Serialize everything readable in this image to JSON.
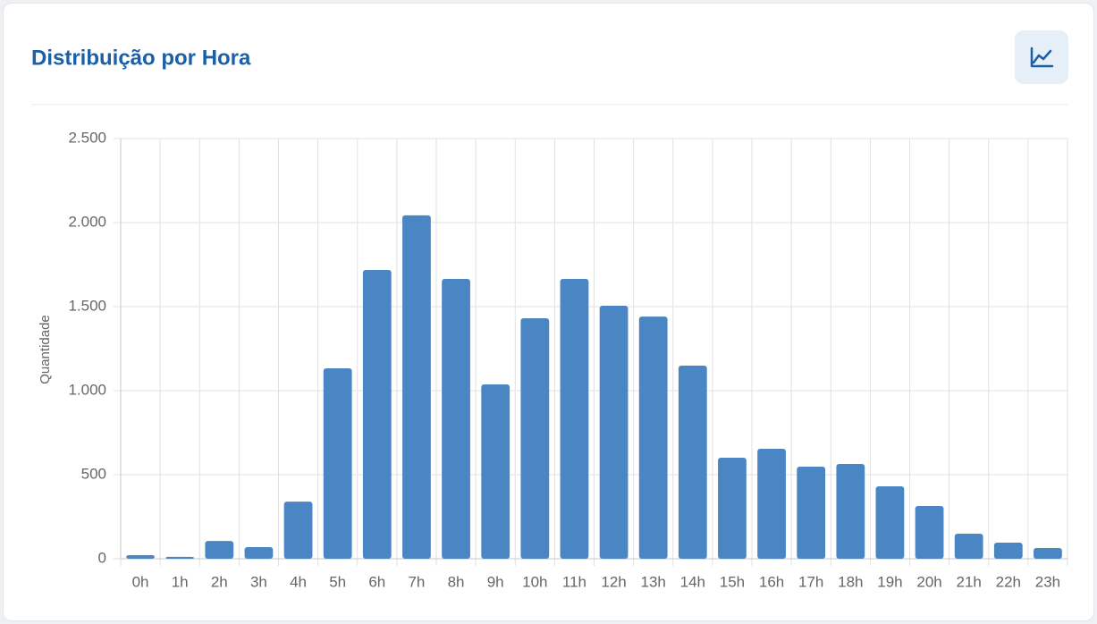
{
  "chart_data": {
    "type": "bar",
    "title": "Distribuição por Hora",
    "y_label": "Quantidade",
    "categories": [
      "0h",
      "1h",
      "2h",
      "3h",
      "4h",
      "5h",
      "6h",
      "7h",
      "8h",
      "9h",
      "10h",
      "11h",
      "12h",
      "13h",
      "14h",
      "15h",
      "16h",
      "17h",
      "18h",
      "19h",
      "20h",
      "21h",
      "22h",
      "23h"
    ],
    "values": [
      21,
      11,
      106,
      69,
      340,
      1133,
      1718,
      2043,
      1665,
      1037,
      1431,
      1665,
      1505,
      1441,
      1149,
      601,
      654,
      548,
      564,
      431,
      314,
      149,
      96,
      64
    ],
    "color": "#4a86c4",
    "ylim": [
      0,
      2500
    ],
    "yticks": [
      0,
      500,
      {
        "value": 1000,
        "label": "1.000"
      },
      {
        "value": 1500,
        "label": "1.500"
      },
      {
        "value": 2000,
        "label": "2.000"
      },
      {
        "value": 2500,
        "label": "2.500"
      }
    ],
    "grid": true
  }
}
